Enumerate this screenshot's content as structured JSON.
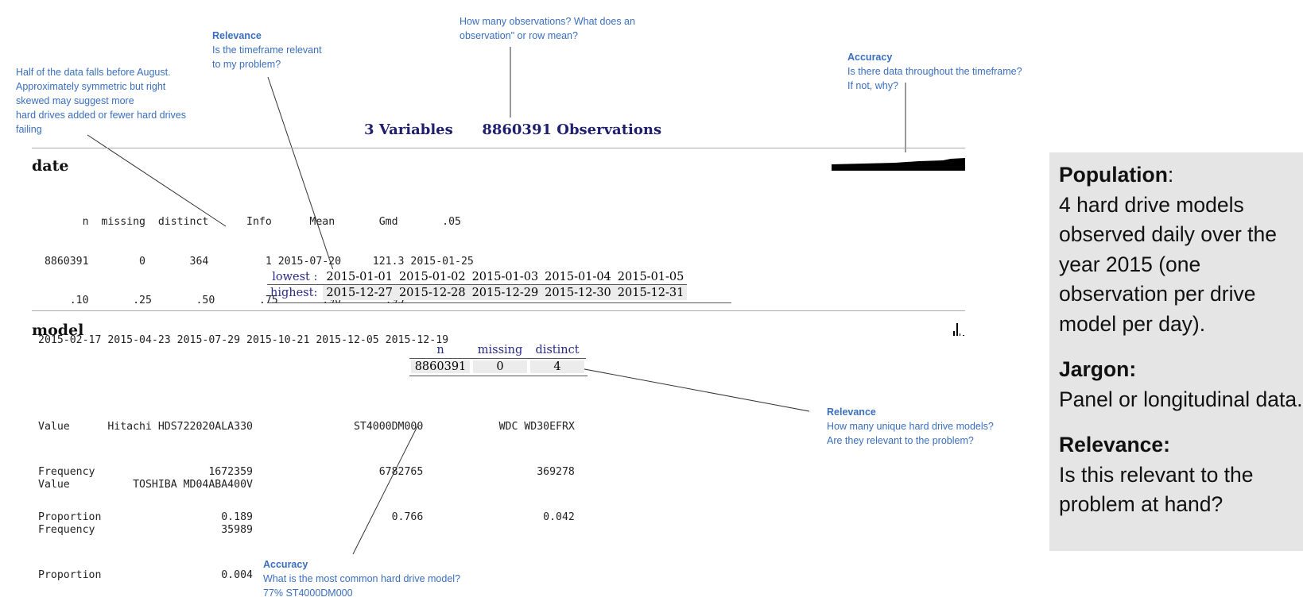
{
  "summary": {
    "variables": "3 Variables",
    "observations": "8860391 Observations"
  },
  "date": {
    "title": "date",
    "stats_line1": "       n  missing  distinct      Info      Mean       Gmd       .05",
    "stats_line2": " 8860391        0       364         1 2015-07-20     121.3 2015-01-25",
    "stats_line3": "     .10       .25       .50       .75       .90       .95",
    "stats_line4": "2015-02-17 2015-04-23 2015-07-29 2015-10-21 2015-12-05 2015-12-19",
    "lowest_label": "lowest :",
    "highest_label": "highest:",
    "lowest": [
      "2015-01-01",
      "2015-01-02",
      "2015-01-03",
      "2015-01-04",
      "2015-01-05"
    ],
    "highest": [
      "2015-12-27",
      "2015-12-28",
      "2015-12-29",
      "2015-12-30",
      "2015-12-31"
    ]
  },
  "model": {
    "title": "model",
    "headers": [
      "n",
      "missing",
      "distinct"
    ],
    "values": [
      "8860391",
      "0",
      "4"
    ],
    "table1_line1": "Value      Hitachi HDS722020ALA330                ST4000DM000            WDC WD30EFRX",
    "table1_line2": "Frequency                  1672359                    6782765                  369278",
    "table1_line3": "Proportion                   0.189                      0.766                   0.042",
    "table2_line1": "Value          TOSHIBA MD04ABA400V",
    "table2_line2": "Frequency                    35989",
    "table2_line3": "Proportion                   0.004"
  },
  "annotations": {
    "half": {
      "lines": [
        "Half of the data falls before August.",
        "Approximately symmetric but right",
        "skewed may suggest more",
        "hard drives added or fewer hard drives",
        "failing"
      ]
    },
    "relevance_time": {
      "title": "Relevance",
      "lines": [
        "Is the timeframe relevant",
        "to my problem?"
      ]
    },
    "observations": {
      "lines": [
        "How many observations? What does an",
        "observation\" or row mean?"
      ]
    },
    "accuracy_time": {
      "title": "Accuracy",
      "lines": [
        "Is there data throughout the timeframe?",
        "If not, why?"
      ]
    },
    "relevance_models": {
      "title": "Relevance",
      "lines": [
        "How many unique hard drive models?",
        "Are they relevant to the problem?"
      ]
    },
    "accuracy_model": {
      "title": "Accuracy",
      "lines": [
        "What is the most  common hard drive model?",
        "77% ST4000DM000"
      ]
    }
  },
  "sidebar": {
    "population_label": "Population",
    "population_text": [
      "4 hard drive models",
      "observed daily over the",
      "year 2015 (one",
      "observation per drive",
      "model per day)."
    ],
    "jargon_label": "Jargon:",
    "jargon_text": "Panel or longitudinal data.",
    "relevance_label": "Relevance:",
    "relevance_text": [
      "Is this relevant to the",
      "problem at hand?"
    ]
  },
  "colors": {
    "annotation": "#3a6fbf",
    "header_navy": "#1f1f6e",
    "sidebar_bg": "#e5e5e5"
  }
}
